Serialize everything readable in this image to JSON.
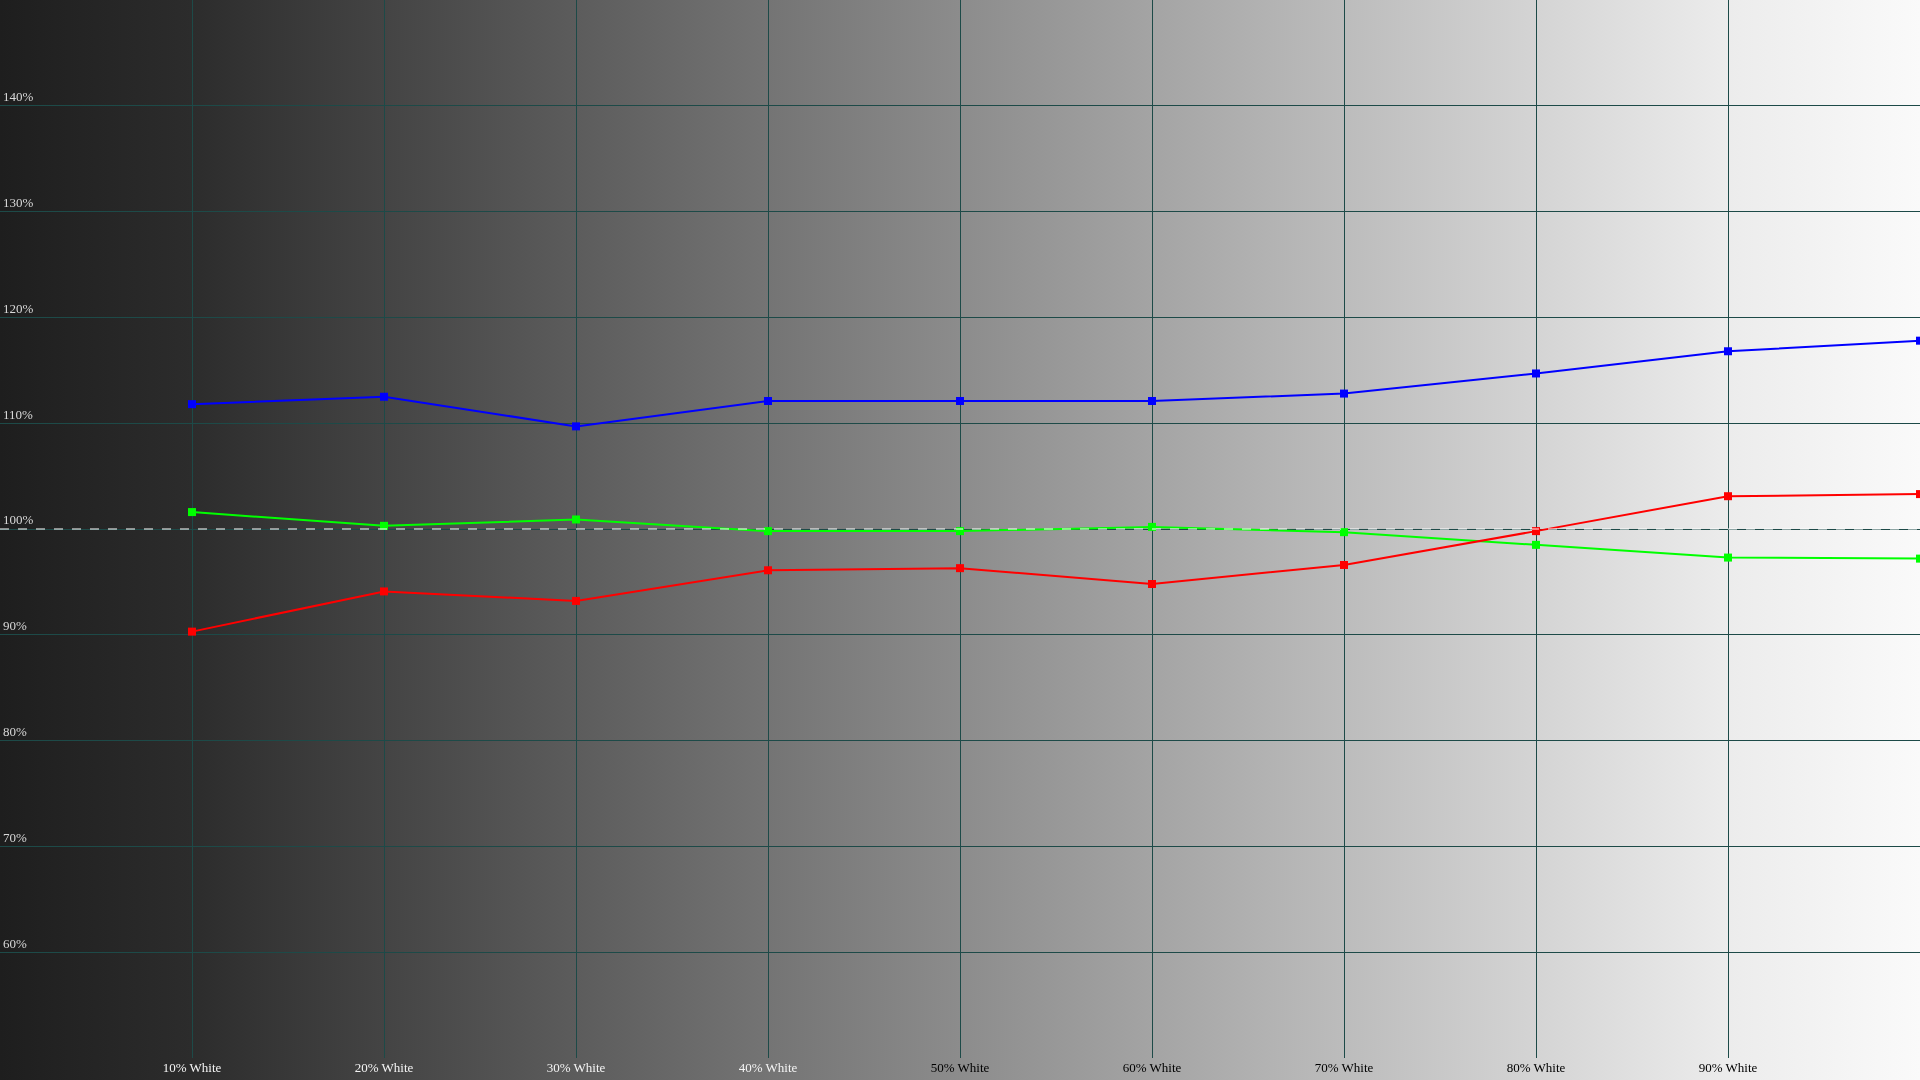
{
  "chart_data": {
    "type": "line",
    "x": [
      10,
      20,
      30,
      40,
      50,
      60,
      70,
      80,
      90,
      100
    ],
    "series": [
      {
        "color": "#0000ff",
        "values": [
          111.8,
          112.5,
          109.7,
          112.1,
          112.1,
          112.1,
          112.8,
          114.7,
          116.8,
          117.8
        ]
      },
      {
        "color": "#00ff00",
        "values": [
          101.6,
          100.3,
          100.9,
          99.8,
          99.8,
          100.2,
          99.7,
          98.5,
          97.3,
          97.2
        ]
      },
      {
        "color": "#ff0000",
        "values": [
          90.3,
          94.1,
          93.2,
          96.1,
          96.3,
          94.8,
          96.6,
          99.8,
          103.1,
          103.3
        ]
      }
    ],
    "xlim": [
      0,
      100
    ],
    "xticks": [
      {
        "value": 10,
        "label": "10% White"
      },
      {
        "value": 20,
        "label": "20% White"
      },
      {
        "value": 30,
        "label": "30% White"
      },
      {
        "value": 40,
        "label": "40% White"
      },
      {
        "value": 50,
        "label": "50% White"
      },
      {
        "value": 60,
        "label": "60% White"
      },
      {
        "value": 70,
        "label": "70% White"
      },
      {
        "value": 80,
        "label": "80% White"
      },
      {
        "value": 90,
        "label": "90% White"
      }
    ],
    "ylim": [
      50,
      150
    ],
    "yticks": [
      {
        "value": 60,
        "label": "60%"
      },
      {
        "value": 70,
        "label": "70%"
      },
      {
        "value": 80,
        "label": "80%"
      },
      {
        "value": 90,
        "label": "90%"
      },
      {
        "value": 100,
        "label": "100%"
      },
      {
        "value": 110,
        "label": "110%"
      },
      {
        "value": 120,
        "label": "120%"
      },
      {
        "value": 130,
        "label": "130%"
      },
      {
        "value": 140,
        "label": "140%"
      }
    ],
    "ref_lines": [
      {
        "axis": "y",
        "value": 100,
        "color": "#ffffff",
        "line_style": "dashed"
      }
    ],
    "grid": true,
    "marker": "square",
    "line_style": "solid"
  }
}
